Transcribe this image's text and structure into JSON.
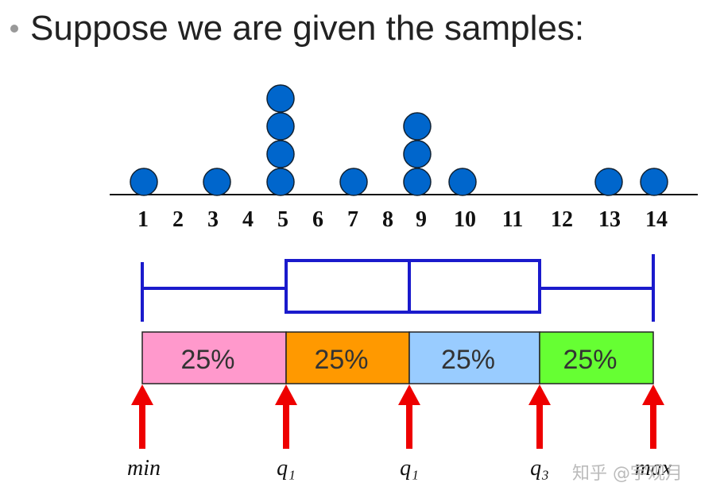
{
  "title": "Suppose we are given the samples:",
  "chart_data": {
    "type": "dot",
    "categories": [
      "1",
      "2",
      "3",
      "4",
      "5",
      "6",
      "7",
      "8",
      "9",
      "10",
      "11",
      "12",
      "13",
      "14"
    ],
    "values": [
      1,
      0,
      1,
      0,
      4,
      0,
      1,
      0,
      3,
      1,
      0,
      0,
      1,
      1
    ],
    "color": "#0066cc"
  },
  "segments": [
    {
      "label": "25%",
      "color": "#ff99cc"
    },
    {
      "label": "25%",
      "color": "#ff9900"
    },
    {
      "label": "25%",
      "color": "#99ccff"
    },
    {
      "label": "25%",
      "color": "#66ff33"
    }
  ],
  "markers": [
    "min",
    "q₁",
    "q₁",
    "q₃",
    "max"
  ],
  "watermark": "知乎 @宇观月"
}
